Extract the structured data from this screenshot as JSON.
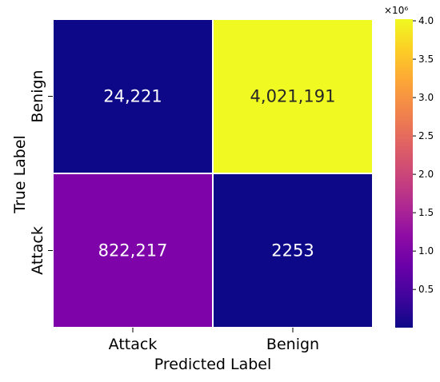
{
  "chart_data": {
    "type": "heatmap",
    "title": "",
    "xlabel": "Predicted Label",
    "ylabel": "True Label",
    "x_categories": [
      "Attack",
      "Benign"
    ],
    "y_categories": [
      "Benign",
      "Attack"
    ],
    "cells": [
      {
        "row": "Benign",
        "col": "Attack",
        "value": 24221,
        "label": "24,221",
        "color": "#0d0887"
      },
      {
        "row": "Benign",
        "col": "Benign",
        "value": 4021191,
        "label": "4,021,191",
        "color": "#f0f921"
      },
      {
        "row": "Attack",
        "col": "Attack",
        "value": 822217,
        "label": "822,217",
        "color": "#7e03a8"
      },
      {
        "row": "Attack",
        "col": "Benign",
        "value": 2253,
        "label": "2253",
        "color": "#0d0887"
      }
    ],
    "colorbar": {
      "colormap": "plasma",
      "min": 2253,
      "max": 4021191,
      "ticks": [
        0.5,
        1.0,
        1.5,
        2.0,
        2.5,
        3.0,
        3.5,
        4.0
      ],
      "tick_labels": [
        "0.5",
        "1.0",
        "1.5",
        "2.0",
        "2.5",
        "3.0",
        "3.5",
        "4.0"
      ],
      "multiplier_label": "×10⁶",
      "multiplier": 1000000
    }
  }
}
